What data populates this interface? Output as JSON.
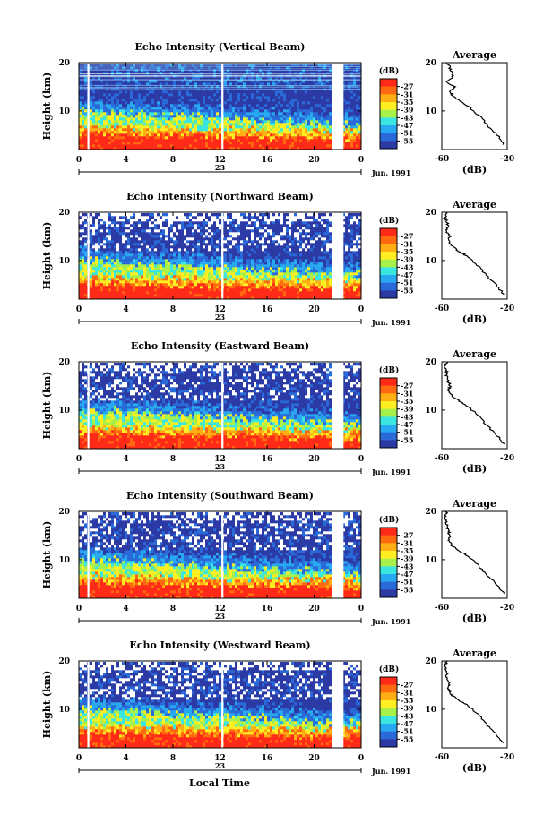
{
  "footer_xlabel": "Local Time",
  "colorbar": {
    "unit_label": "(dB)",
    "levels": [
      "-27",
      "-31",
      "-35",
      "-39",
      "-43",
      "-47",
      "-51",
      "-55"
    ],
    "colors": [
      "#ff2a18",
      "#ff6a10",
      "#ffae14",
      "#ffee22",
      "#a8f04a",
      "#3ce6e0",
      "#28a8f0",
      "#2a6ad8",
      "#2c3aa6"
    ]
  },
  "chart_data": [
    {
      "type": "heatmap",
      "title": "Echo Intensity (Vertical Beam)",
      "ylabel": "Height (km)",
      "ylim": [
        2,
        20
      ],
      "yticks": [
        "20",
        "10"
      ],
      "xticks": [
        "0",
        "4",
        "8",
        "12",
        "16",
        "20",
        "0"
      ],
      "xlim": [
        0,
        24
      ],
      "day_label": "23",
      "date_label": "Jun. 1991",
      "missing_hours": [
        [
          21.5,
          22.5
        ]
      ],
      "white_gap_hours": [
        0.8,
        12.2
      ],
      "profile": {
        "title": "Average",
        "xlabel": "(dB)",
        "xticks": [
          "-60",
          "-20"
        ],
        "xlim": [
          -60,
          -20
        ],
        "ylim": [
          2,
          20
        ],
        "yticks": [
          "20",
          "10"
        ],
        "heights": [
          3,
          5,
          7,
          9,
          11,
          12,
          13,
          14,
          15,
          16,
          17,
          18,
          19,
          20
        ],
        "values": [
          -22,
          -26,
          -32,
          -37,
          -44,
          -49,
          -53,
          -55,
          -52,
          -57,
          -53,
          -54,
          -55,
          -57
        ]
      }
    },
    {
      "type": "heatmap",
      "title": "Echo Intensity (Northward Beam)",
      "ylabel": "Height (km)",
      "ylim": [
        2,
        20
      ],
      "yticks": [
        "20",
        "10"
      ],
      "xticks": [
        "0",
        "4",
        "8",
        "12",
        "16",
        "20",
        "0"
      ],
      "xlim": [
        0,
        24
      ],
      "day_label": "23",
      "date_label": "Jun. 1991",
      "missing_hours": [
        [
          21.5,
          22.5
        ]
      ],
      "white_gap_hours": [
        0.8,
        12.2
      ],
      "profile": {
        "title": "Average",
        "xlabel": "(dB)",
        "xticks": [
          "-60",
          "-20"
        ],
        "xlim": [
          -60,
          -20
        ],
        "ylim": [
          2,
          20
        ],
        "yticks": [
          "20",
          "10"
        ],
        "heights": [
          3,
          5,
          7,
          9,
          11,
          12,
          13,
          14,
          15,
          16,
          17,
          18,
          19,
          20
        ],
        "values": [
          -22,
          -27,
          -33,
          -38,
          -45,
          -50,
          -54,
          -56,
          -55,
          -57,
          -56,
          -57,
          -58,
          -57
        ]
      }
    },
    {
      "type": "heatmap",
      "title": "Echo Intensity (Eastward Beam)",
      "ylabel": "Height (km)",
      "ylim": [
        2,
        20
      ],
      "yticks": [
        "20",
        "10"
      ],
      "xticks": [
        "0",
        "4",
        "8",
        "12",
        "16",
        "20",
        "0"
      ],
      "xlim": [
        0,
        24
      ],
      "day_label": "23",
      "date_label": "Jun. 1991",
      "missing_hours": [
        [
          21.5,
          22.5
        ]
      ],
      "white_gap_hours": [
        0.8,
        12.2
      ],
      "profile": {
        "title": "Average",
        "xlabel": "(dB)",
        "xticks": [
          "-60",
          "-20"
        ],
        "xlim": [
          -60,
          -20
        ],
        "ylim": [
          2,
          20
        ],
        "yticks": [
          "20",
          "10"
        ],
        "heights": [
          3,
          5,
          7,
          9,
          11,
          12,
          13,
          14,
          15,
          16,
          17,
          18,
          19,
          20
        ],
        "values": [
          -22,
          -27,
          -33,
          -38,
          -45,
          -50,
          -54,
          -56,
          -55,
          -56,
          -57,
          -57,
          -58,
          -57
        ]
      }
    },
    {
      "type": "heatmap",
      "title": "Echo Intensity (Southward Beam)",
      "ylabel": "Height (km)",
      "ylim": [
        2,
        20
      ],
      "yticks": [
        "20",
        "10"
      ],
      "xticks": [
        "0",
        "4",
        "8",
        "12",
        "16",
        "20",
        "0"
      ],
      "xlim": [
        0,
        24
      ],
      "day_label": "23",
      "date_label": "Jun. 1991",
      "missing_hours": [
        [
          21.5,
          22.5
        ]
      ],
      "white_gap_hours": [
        0.8,
        12.2
      ],
      "profile": {
        "title": "Average",
        "xlabel": "(dB)",
        "xticks": [
          "-60",
          "-20"
        ],
        "xlim": [
          -60,
          -20
        ],
        "ylim": [
          2,
          20
        ],
        "yticks": [
          "20",
          "10"
        ],
        "heights": [
          3,
          5,
          7,
          9,
          11,
          12,
          13,
          14,
          15,
          16,
          17,
          18,
          19,
          20
        ],
        "values": [
          -22,
          -27,
          -33,
          -38,
          -45,
          -50,
          -54,
          -56,
          -55,
          -56,
          -57,
          -57,
          -58,
          -57
        ]
      }
    },
    {
      "type": "heatmap",
      "title": "Echo Intensity (Westward Beam)",
      "ylabel": "Height (km)",
      "ylim": [
        2,
        20
      ],
      "yticks": [
        "20",
        "10"
      ],
      "xticks": [
        "0",
        "4",
        "8",
        "12",
        "16",
        "20",
        "0"
      ],
      "xlim": [
        0,
        24
      ],
      "day_label": "23",
      "date_label": "Jun. 1991",
      "missing_hours": [
        [
          21.5,
          22.5
        ]
      ],
      "white_gap_hours": [
        0.8,
        12.2
      ],
      "profile": {
        "title": "Average",
        "xlabel": "(dB)",
        "xticks": [
          "-60",
          "-20"
        ],
        "xlim": [
          -60,
          -20
        ],
        "ylim": [
          2,
          20
        ],
        "yticks": [
          "20",
          "10"
        ],
        "heights": [
          3,
          5,
          7,
          9,
          11,
          12,
          13,
          14,
          15,
          16,
          17,
          18,
          19,
          20
        ],
        "values": [
          -22,
          -27,
          -33,
          -38,
          -45,
          -50,
          -54,
          -56,
          -55,
          -56,
          -57,
          -57,
          -58,
          -57
        ]
      }
    }
  ]
}
